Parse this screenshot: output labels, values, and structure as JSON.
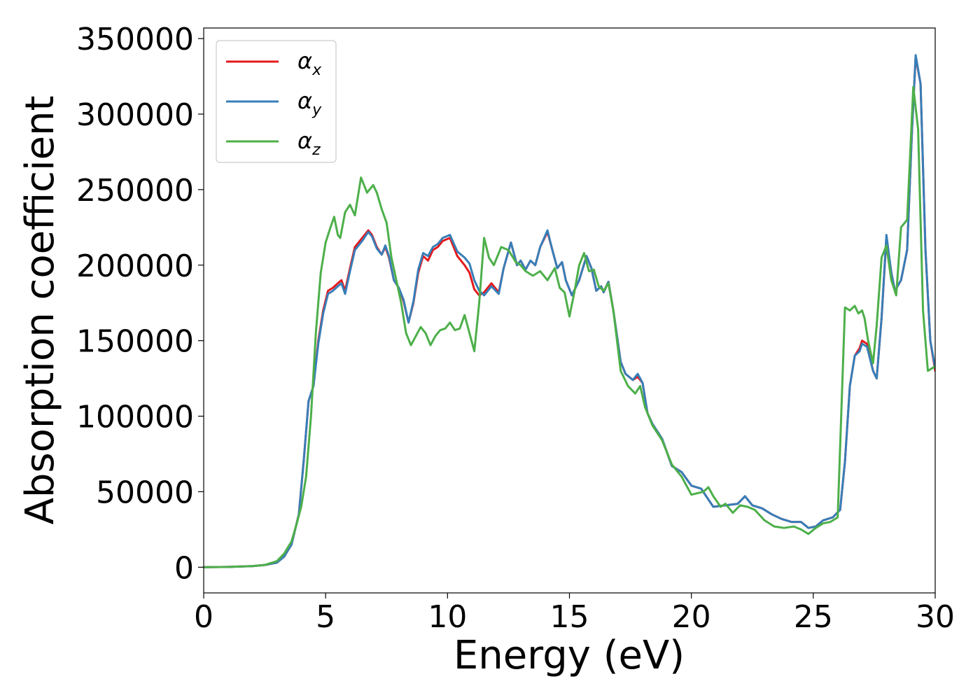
{
  "chart_data": {
    "type": "line",
    "title": "",
    "xlabel": "Energy (eV)",
    "ylabel": "Absorption coefficient",
    "xlim": [
      0,
      30
    ],
    "ylim": [
      -17000,
      357000
    ],
    "xticks": [
      0,
      5,
      10,
      15,
      20,
      25,
      30
    ],
    "yticks": [
      0,
      50000,
      100000,
      150000,
      200000,
      250000,
      300000,
      350000
    ],
    "grid": false,
    "legend_position": "top-left",
    "series": [
      {
        "name": "α",
        "subscript": "x",
        "color": "#e41a1c",
        "x": [
          0,
          1,
          2,
          2.5,
          3,
          3.3,
          3.6,
          3.9,
          4.1,
          4.3,
          4.5,
          4.7,
          4.9,
          5.1,
          5.3,
          5.5,
          5.65,
          5.8,
          6.0,
          6.2,
          6.5,
          6.75,
          6.9,
          7.1,
          7.3,
          7.45,
          7.6,
          7.8,
          8.0,
          8.2,
          8.4,
          8.6,
          8.8,
          9.0,
          9.2,
          9.4,
          9.6,
          9.8,
          10.1,
          10.4,
          10.7,
          10.9,
          11.1,
          11.3,
          11.5,
          11.8,
          12.1,
          12.3,
          12.6,
          12.85,
          13.0,
          13.2,
          13.4,
          13.6,
          13.8,
          14.1,
          14.3,
          14.5,
          14.7,
          14.85,
          15.1,
          15.4,
          15.7,
          15.9,
          16.1,
          16.3,
          16.4,
          16.6,
          16.8,
          17.1,
          17.3,
          17.6,
          17.8,
          18.0,
          18.2,
          18.4,
          18.8,
          19.2,
          19.6,
          20.0,
          20.4,
          20.9,
          21.4,
          21.9,
          22.2,
          22.5,
          22.9,
          23.3,
          23.7,
          24.1,
          24.5,
          24.8,
          25.1,
          25.4,
          25.8,
          26.1,
          26.3,
          26.5,
          26.7,
          26.9,
          27.0,
          27.2,
          27.45,
          27.6,
          27.8,
          28.0,
          28.2,
          28.35,
          28.6,
          28.85,
          29.05,
          29.2,
          29.4,
          29.6,
          29.8,
          30.0
        ],
        "y": [
          0,
          200,
          700,
          1500,
          3000,
          7000,
          15000,
          35000,
          70000,
          110000,
          120000,
          150000,
          170000,
          183000,
          185000,
          188000,
          190000,
          183000,
          198000,
          212000,
          218000,
          223000,
          220000,
          212000,
          207000,
          212000,
          205000,
          190000,
          185000,
          176000,
          162000,
          175000,
          195000,
          206000,
          203000,
          210000,
          212000,
          216000,
          218000,
          206000,
          200000,
          195000,
          184000,
          180000,
          182000,
          188000,
          182000,
          198000,
          215000,
          200000,
          203000,
          197000,
          203000,
          200000,
          212000,
          222000,
          210000,
          198000,
          202000,
          190000,
          180000,
          190000,
          206000,
          198000,
          183000,
          186000,
          182000,
          189000,
          170000,
          136000,
          128000,
          124000,
          126000,
          122000,
          102000,
          95000,
          85000,
          67000,
          63000,
          54000,
          52000,
          40000,
          41000,
          42000,
          47000,
          41000,
          39000,
          35000,
          32000,
          30000,
          30000,
          26000,
          27000,
          31000,
          33000,
          38000,
          70000,
          120000,
          140000,
          145000,
          150000,
          148000,
          130000,
          125000,
          165000,
          218000,
          195000,
          183000,
          190000,
          210000,
          290000,
          338000,
          320000,
          210000,
          150000,
          130000
        ]
      },
      {
        "name": "α",
        "subscript": "y",
        "color": "#377eb8",
        "x": [
          0,
          1,
          2,
          2.5,
          3,
          3.3,
          3.6,
          3.9,
          4.1,
          4.3,
          4.5,
          4.7,
          4.9,
          5.1,
          5.3,
          5.5,
          5.65,
          5.8,
          6.0,
          6.2,
          6.5,
          6.75,
          6.9,
          7.1,
          7.3,
          7.45,
          7.6,
          7.8,
          8.0,
          8.2,
          8.4,
          8.6,
          8.8,
          9.0,
          9.2,
          9.4,
          9.6,
          9.8,
          10.1,
          10.4,
          10.7,
          10.9,
          11.1,
          11.3,
          11.5,
          11.8,
          12.1,
          12.3,
          12.6,
          12.85,
          13.0,
          13.2,
          13.4,
          13.6,
          13.8,
          14.1,
          14.3,
          14.5,
          14.7,
          14.85,
          15.1,
          15.4,
          15.7,
          15.9,
          16.1,
          16.3,
          16.4,
          16.6,
          16.8,
          17.1,
          17.3,
          17.6,
          17.8,
          18.0,
          18.2,
          18.4,
          18.8,
          19.2,
          19.6,
          20.0,
          20.4,
          20.9,
          21.4,
          21.9,
          22.2,
          22.5,
          22.9,
          23.3,
          23.7,
          24.1,
          24.5,
          24.8,
          25.1,
          25.4,
          25.8,
          26.1,
          26.3,
          26.5,
          26.7,
          26.9,
          27.0,
          27.2,
          27.45,
          27.6,
          27.8,
          28.0,
          28.2,
          28.35,
          28.6,
          28.85,
          29.05,
          29.2,
          29.4,
          29.6,
          29.8,
          30.0
        ],
        "y": [
          0,
          200,
          700,
          1500,
          3000,
          7000,
          15000,
          35000,
          70000,
          110000,
          120000,
          148000,
          168000,
          181000,
          183000,
          186000,
          188000,
          181000,
          196000,
          210000,
          216000,
          222000,
          219000,
          211000,
          207000,
          213000,
          206000,
          190000,
          185000,
          177000,
          162000,
          176000,
          197000,
          208000,
          206000,
          212000,
          214000,
          218000,
          220000,
          209000,
          205000,
          201000,
          190000,
          183000,
          180000,
          186000,
          181000,
          198000,
          215000,
          200000,
          203000,
          197000,
          203000,
          200000,
          212000,
          223000,
          210000,
          198000,
          202000,
          190000,
          180000,
          190000,
          206000,
          198000,
          183000,
          186000,
          182000,
          189000,
          170000,
          136000,
          128000,
          124000,
          128000,
          122000,
          102000,
          95000,
          85000,
          67000,
          63000,
          54000,
          52000,
          40000,
          41000,
          42000,
          47000,
          41000,
          39000,
          35000,
          32000,
          30000,
          30000,
          26000,
          27000,
          31000,
          33000,
          38000,
          70000,
          120000,
          140000,
          143000,
          148000,
          146000,
          130000,
          125000,
          165000,
          220000,
          195000,
          183000,
          190000,
          210000,
          290000,
          339000,
          320000,
          210000,
          150000,
          132000
        ]
      },
      {
        "name": "α",
        "subscript": "z",
        "color": "#4daf4a",
        "x": [
          0,
          1,
          2,
          2.5,
          3,
          3.3,
          3.6,
          3.8,
          4.0,
          4.2,
          4.4,
          4.6,
          4.8,
          5.0,
          5.2,
          5.35,
          5.5,
          5.6,
          5.8,
          6.0,
          6.2,
          6.45,
          6.7,
          6.95,
          7.1,
          7.3,
          7.5,
          7.7,
          7.9,
          8.1,
          8.3,
          8.5,
          8.7,
          8.9,
          9.1,
          9.3,
          9.5,
          9.7,
          9.9,
          10.1,
          10.3,
          10.5,
          10.7,
          10.9,
          11.1,
          11.3,
          11.5,
          11.7,
          11.9,
          12.2,
          12.5,
          12.8,
          13.0,
          13.2,
          13.5,
          13.8,
          14.1,
          14.4,
          14.6,
          14.8,
          15.0,
          15.2,
          15.4,
          15.6,
          15.8,
          16.0,
          16.2,
          16.4,
          16.6,
          16.8,
          17.1,
          17.4,
          17.7,
          17.9,
          18.1,
          18.4,
          18.8,
          19.2,
          19.6,
          20.0,
          20.5,
          20.7,
          20.9,
          21.2,
          21.4,
          21.7,
          22.0,
          22.3,
          22.6,
          23.0,
          23.4,
          23.8,
          24.2,
          24.5,
          24.8,
          25.1,
          25.4,
          25.7,
          26.0,
          26.3,
          26.5,
          26.7,
          26.85,
          27.0,
          27.1,
          27.25,
          27.45,
          27.6,
          27.8,
          28.0,
          28.2,
          28.4,
          28.6,
          28.85,
          29.1,
          29.3,
          29.5,
          29.7,
          30.0
        ],
        "y": [
          0,
          200,
          800,
          1500,
          4000,
          9000,
          17000,
          28000,
          40000,
          60000,
          100000,
          155000,
          195000,
          215000,
          225000,
          232000,
          220000,
          218000,
          235000,
          240000,
          233000,
          258000,
          248000,
          253000,
          248000,
          237000,
          228000,
          205000,
          190000,
          175000,
          155000,
          147000,
          153000,
          159000,
          155000,
          147000,
          153000,
          157000,
          158000,
          162000,
          157000,
          158000,
          167000,
          155000,
          143000,
          175000,
          218000,
          205000,
          200000,
          212000,
          210000,
          202000,
          200000,
          196000,
          193000,
          196000,
          190000,
          198000,
          185000,
          182000,
          166000,
          182000,
          200000,
          208000,
          196000,
          197000,
          186000,
          183000,
          188000,
          170000,
          130000,
          120000,
          115000,
          120000,
          106000,
          94000,
          84000,
          68000,
          60000,
          48000,
          50000,
          53000,
          47000,
          40000,
          42000,
          36000,
          41000,
          40000,
          38000,
          31000,
          27000,
          26000,
          27000,
          25000,
          22000,
          26000,
          29000,
          30000,
          33000,
          172000,
          170000,
          173000,
          168000,
          170000,
          165000,
          150000,
          135000,
          160000,
          205000,
          213000,
          190000,
          180000,
          225000,
          230000,
          318000,
          290000,
          170000,
          130000,
          133000
        ]
      }
    ]
  }
}
